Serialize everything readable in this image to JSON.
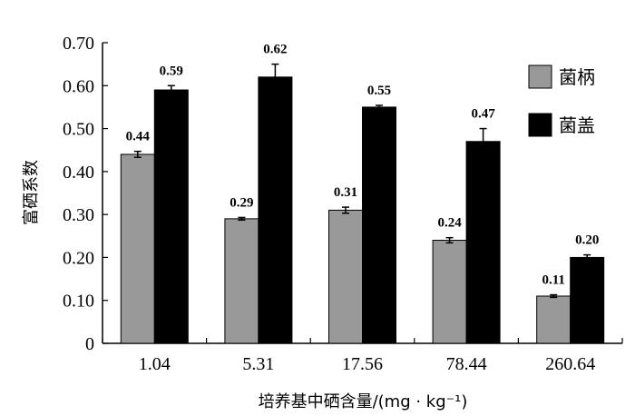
{
  "chart_data": {
    "type": "bar",
    "ylabel": "富硒系数",
    "xlabel": "培养基中硒含量/(mg · kg⁻¹)",
    "categories": [
      "1.04",
      "5.31",
      "17.56",
      "78.44",
      "260.64"
    ],
    "ylim": [
      0,
      0.7
    ],
    "yticks": [
      "0",
      "0.10",
      "0.20",
      "0.30",
      "0.40",
      "0.50",
      "0.60",
      "0.70"
    ],
    "series": [
      {
        "name": "菌柄",
        "color": "#999999",
        "values": [
          0.44,
          0.29,
          0.31,
          0.24,
          0.11
        ],
        "labels": [
          "0.44",
          "0.29",
          "0.31",
          "0.24",
          "0.11"
        ],
        "errors": [
          0.007,
          0.003,
          0.007,
          0.006,
          0.003
        ]
      },
      {
        "name": "菌盖",
        "color": "#000000",
        "values": [
          0.59,
          0.62,
          0.55,
          0.47,
          0.2
        ],
        "labels": [
          "0.59",
          "0.62",
          "0.55",
          "0.47",
          "0.20"
        ],
        "errors": [
          0.01,
          0.03,
          0.004,
          0.03,
          0.006
        ]
      }
    ],
    "legend_position": "top-right",
    "grid": false
  }
}
